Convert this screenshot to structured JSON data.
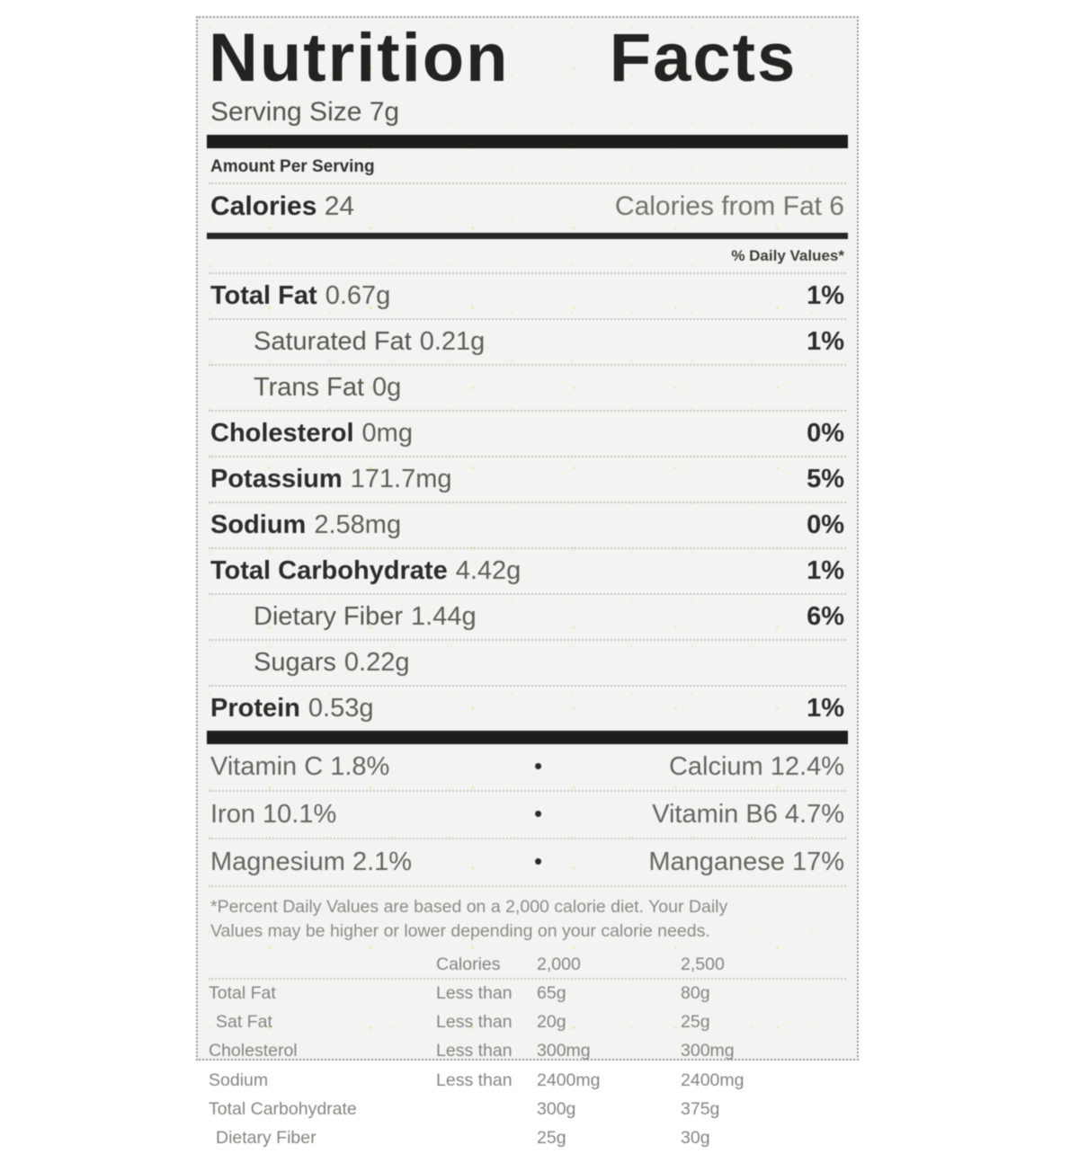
{
  "label": {
    "title": "Nutrition Facts",
    "serving_size": "Serving Size 7g",
    "amount_per_serving": "Amount Per Serving",
    "calories_label": "Calories",
    "calories_value": "24",
    "calories_from_fat": "Calories from Fat 6",
    "daily_values_header": "% Daily Values*",
    "bullet": "•",
    "nutrients": [
      {
        "name": "Total Fat",
        "value": "0.67g",
        "dv": "1%"
      },
      {
        "name": "Saturated Fat",
        "value": "0.21g",
        "dv": "1%"
      },
      {
        "name": "Trans Fat",
        "value": "0g",
        "dv": ""
      },
      {
        "name": "Cholesterol",
        "value": "0mg",
        "dv": "0%"
      },
      {
        "name": "Potassium",
        "value": "171.7mg",
        "dv": "5%"
      },
      {
        "name": "Sodium",
        "value": "2.58mg",
        "dv": "0%"
      },
      {
        "name": "Total Carbohydrate",
        "value": "4.42g",
        "dv": "1%"
      },
      {
        "name": "Dietary Fiber",
        "value": "1.44g",
        "dv": "6%"
      },
      {
        "name": "Sugars",
        "value": "0.22g",
        "dv": ""
      },
      {
        "name": "Protein",
        "value": "0.53g",
        "dv": "1%"
      }
    ],
    "vitamins": [
      {
        "left": "Vitamin C 1.8%",
        "right": "Calcium 12.4%"
      },
      {
        "left": "Iron 10.1%",
        "right": "Vitamin B6 4.7%"
      },
      {
        "left": "Magnesium 2.1%",
        "right": "Manganese 17%"
      }
    ],
    "footnote_lines": [
      "*Percent Daily Values are based on a 2,000 calorie diet. Your Daily",
      "Values may be higher or lower depending on your calorie needs."
    ],
    "footer_table": {
      "header": [
        "Calories",
        "2,000",
        "2,500"
      ],
      "rows": [
        {
          "name": "Total Fat",
          "cond": "Less than",
          "v2000": "65g",
          "v2500": "80g"
        },
        {
          "name": "Sat Fat",
          "cond": "Less than",
          "v2000": "20g",
          "v2500": "25g"
        },
        {
          "name": "Cholesterol",
          "cond": "Less than",
          "v2000": "300mg",
          "v2500": "300mg"
        },
        {
          "name": "Sodium",
          "cond": "Less than",
          "v2000": "2400mg",
          "v2500": "2400mg"
        },
        {
          "name": "Total Carbohydrate",
          "cond": "",
          "v2000": "300g",
          "v2500": "375g"
        },
        {
          "name": "Dietary Fiber",
          "cond": "",
          "v2000": "25g",
          "v2500": "30g"
        }
      ]
    }
  }
}
